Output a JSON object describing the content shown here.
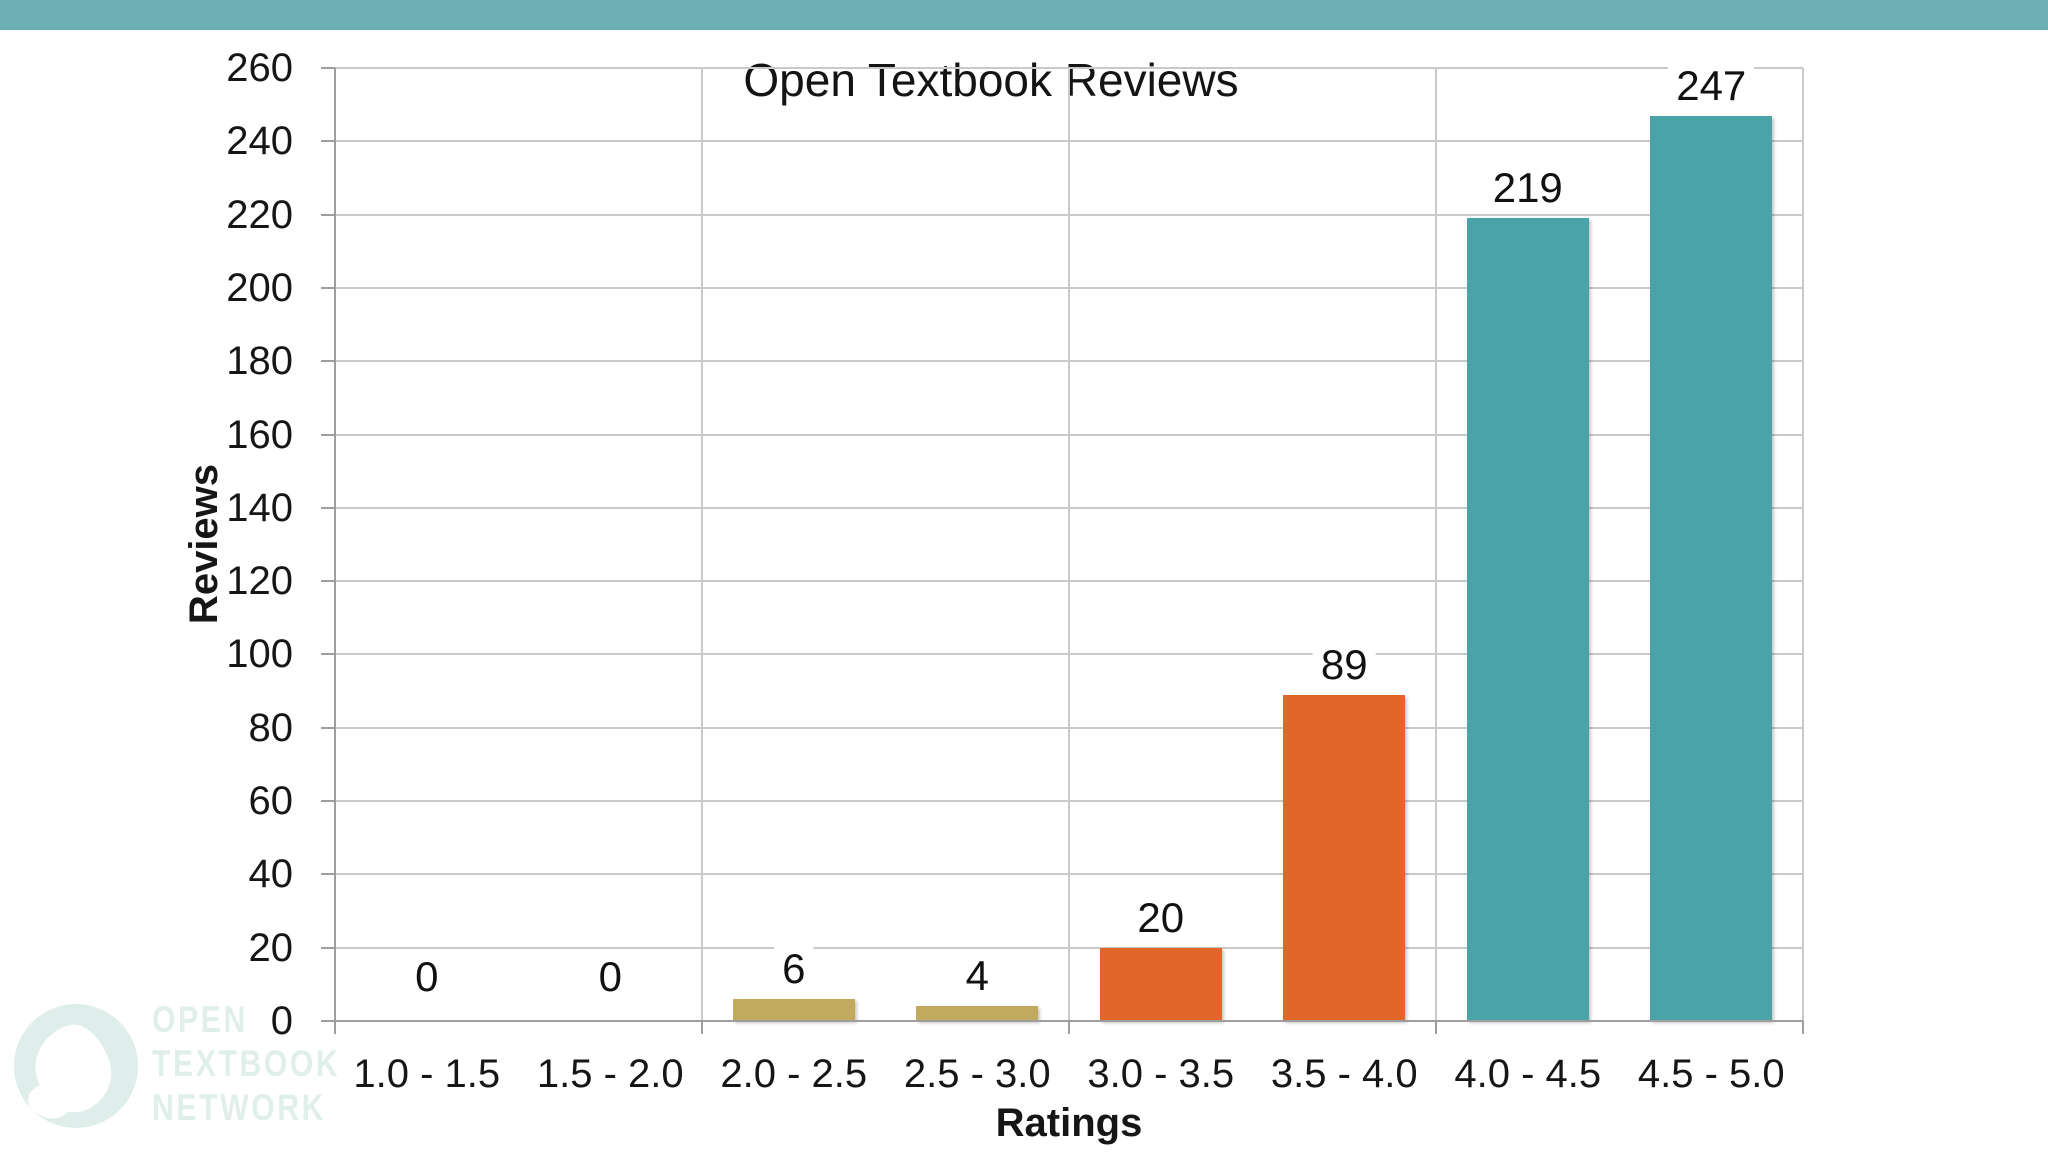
{
  "banner": {
    "color": "#6CB0B5"
  },
  "chart_data": {
    "type": "bar",
    "title": "Open Textbook Reviews",
    "xlabel": "Ratings",
    "ylabel": "Reviews",
    "categories": [
      "1.0 - 1.5",
      "1.5 - 2.0",
      "2.0 - 2.5",
      "2.5 - 3.0",
      "3.0 - 3.5",
      "3.5 - 4.0",
      "4.0 - 4.5",
      "4.5 - 5.0"
    ],
    "values": [
      0,
      0,
      6,
      4,
      20,
      89,
      219,
      247
    ],
    "data_labels": [
      "0",
      "0",
      "6",
      "4",
      "20",
      "89",
      "219",
      "247"
    ],
    "bar_colors": [
      null,
      null,
      "#C1AA5D",
      "#C1AA5D",
      "#E2662A",
      "#E2662A",
      "#4AA3A6",
      "#4AA3A6"
    ],
    "ylim": [
      0,
      260
    ],
    "ytick_step": 20,
    "grid": true,
    "vertical_group_gridlines_every": 2,
    "legend": "none"
  },
  "watermark": {
    "lines": [
      "OPEN",
      "TEXTBOOK",
      "NETWORK"
    ],
    "color": "#DFEEEA",
    "text_color": "#E0EFEC"
  }
}
